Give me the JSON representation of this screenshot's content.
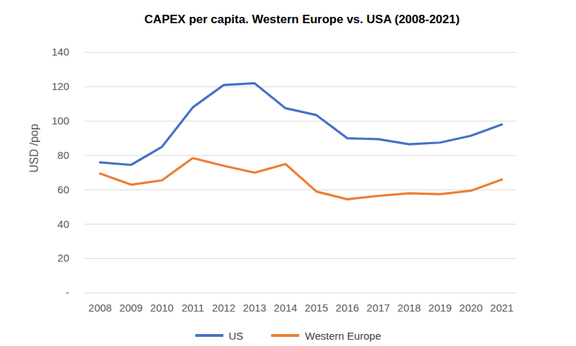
{
  "chart_data": {
    "type": "line",
    "title": "CAPEX per capita. Western Europe vs. USA (2008-2021)",
    "y_label": "USD /pop",
    "categories": [
      "2008",
      "2009",
      "2010",
      "2011",
      "2012",
      "2013",
      "2014",
      "2015",
      "2016",
      "2017",
      "2018",
      "2019",
      "2020",
      "2021"
    ],
    "series": [
      {
        "name": "US",
        "color": "#4472c4",
        "values": [
          76,
          74.5,
          85,
          108,
          121,
          122,
          107.5,
          103.5,
          90,
          89.5,
          86.5,
          87.5,
          91.5,
          98
        ]
      },
      {
        "name": "Western Europe",
        "color": "#ed7d31",
        "values": [
          69.5,
          63,
          65.5,
          78.5,
          74,
          70,
          75,
          59,
          54.5,
          56.5,
          58,
          57.5,
          59.5,
          66
        ]
      }
    ],
    "ylim": [
      0,
      140
    ],
    "yticks": [
      {
        "value": 0,
        "label": "-"
      },
      20,
      40,
      60,
      80,
      100,
      120,
      140
    ],
    "grid": true,
    "legend": "bottom"
  }
}
